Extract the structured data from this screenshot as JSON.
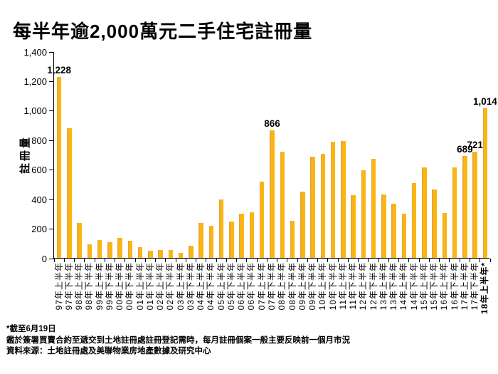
{
  "title": "每半年逾2,000萬元二手住宅註冊量",
  "chart_data": {
    "type": "bar",
    "title": "每半年逾2,000萬元二手住宅註冊量",
    "xlabel": "",
    "ylabel": "註冊量",
    "ylim": [
      0,
      1400
    ],
    "ytick_step": 200,
    "ytick_labels": [
      "0",
      "200",
      "400",
      "600",
      "800",
      "1,000",
      "1,200",
      "1,400"
    ],
    "grid": false,
    "legend": "none",
    "bar_color": "#fbb513",
    "categories": [
      "97年上半年",
      "97年下半年",
      "98年上半年",
      "98年下半年",
      "99年上半年",
      "99年下半年",
      "00年上半年",
      "00年下半年",
      "01年上半年",
      "01年下半年",
      "02年上半年",
      "02年下半年",
      "03年上半年",
      "03年下半年",
      "04年上半年",
      "04年下半年",
      "05年上半年",
      "05年下半年",
      "06年上半年",
      "06年下半年",
      "07年上半年",
      "07年下半年",
      "08年上半年",
      "08年下半年",
      "09年上半年",
      "09年下半年",
      "10年上半年",
      "10年下半年",
      "11年上半年",
      "11年下半年",
      "12年上半年",
      "12年下半年",
      "13年上半年",
      "13年下半年",
      "14年上半年",
      "14年下半年",
      "15年上半年",
      "15年下半年",
      "16年上半年",
      "16年下半年",
      "17年上半年",
      "17年下半年",
      "18年上半年*"
    ],
    "values": [
      1228,
      880,
      237,
      92,
      119,
      108,
      133,
      114,
      71,
      50,
      55,
      53,
      34,
      82,
      236,
      216,
      397,
      248,
      300,
      309,
      517,
      866,
      717,
      253,
      449,
      687,
      705,
      787,
      790,
      425,
      594,
      671,
      430,
      366,
      301,
      505,
      615,
      465,
      305,
      612,
      689,
      721,
      1014
    ],
    "data_labels": {
      "0": "1,228",
      "21": "866",
      "40": "689",
      "41": "721",
      "42": "1,014"
    }
  },
  "footnotes": [
    "*截至6月19日",
    "鑑於簽署買賣合約至遞交到土地註冊處註冊登記需時，每月註冊個案一般主要反映前一個月市況",
    "資料來源：土地註冊處及美聯物業房地產數據及研究中心"
  ]
}
